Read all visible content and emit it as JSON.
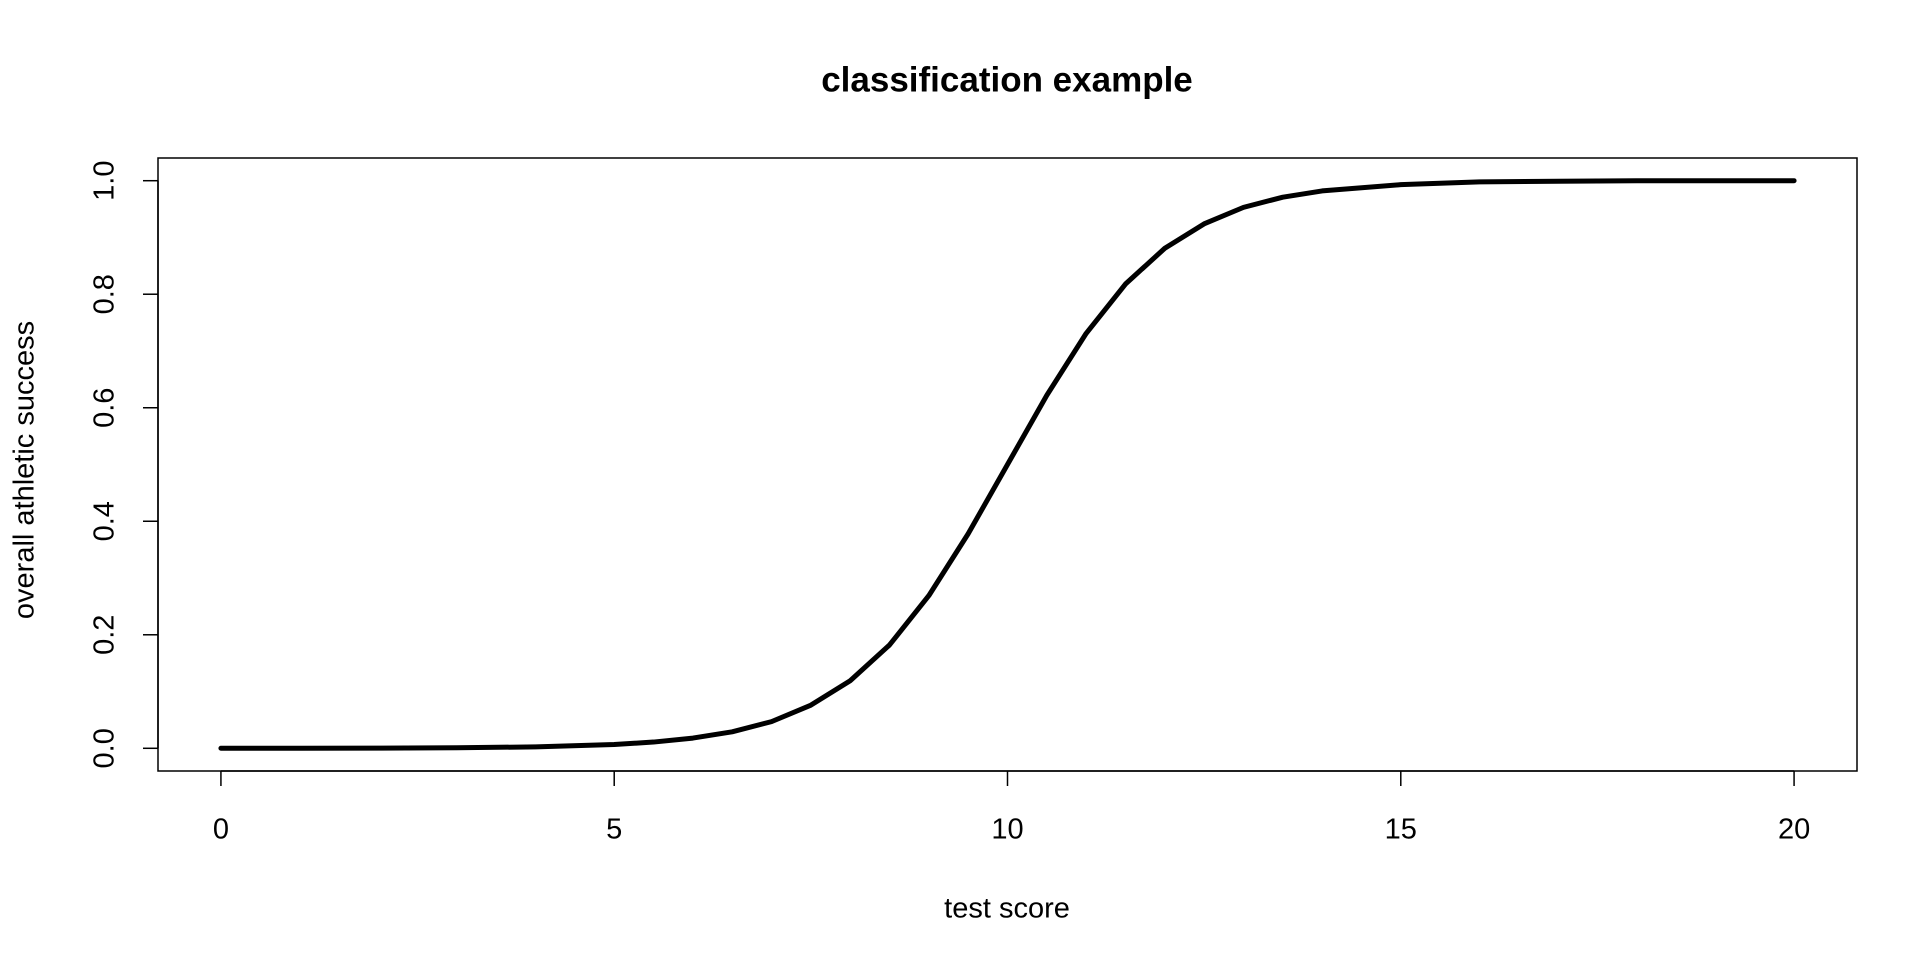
{
  "chart_data": {
    "type": "line",
    "title": "classification example",
    "x_label": "test score",
    "y_label": "overall athletic success",
    "x": [
      0,
      1,
      2,
      3,
      4,
      5,
      5.5,
      6,
      6.5,
      7,
      7.5,
      8,
      8.5,
      9,
      9.5,
      10,
      10.5,
      11,
      11.5,
      12,
      12.5,
      13,
      13.5,
      14,
      15,
      16,
      17,
      18,
      19,
      20
    ],
    "series": [
      {
        "color": "#000000",
        "values": [
          4.54e-05,
          0.0001,
          0.0003,
          0.0009,
          0.0025,
          0.0067,
          0.011,
          0.018,
          0.029,
          0.047,
          0.076,
          0.119,
          0.182,
          0.269,
          0.378,
          0.5,
          0.622,
          0.731,
          0.818,
          0.881,
          0.924,
          0.953,
          0.971,
          0.982,
          0.993,
          0.998,
          0.999,
          1.0,
          1.0,
          1.0
        ]
      }
    ],
    "xlim": [
      -0.8,
      20.8
    ],
    "ylim": [
      -0.04,
      1.04
    ],
    "xticks": [
      0,
      5,
      10,
      15,
      20
    ],
    "yticks": [
      {
        "value": 0,
        "label": "0.0"
      },
      {
        "value": 0.2,
        "label": "0.2"
      },
      {
        "value": 0.4,
        "label": "0.4"
      },
      {
        "value": 0.6,
        "label": "0.6"
      },
      {
        "value": 0.8,
        "label": "0.8"
      },
      {
        "value": 1,
        "label": "1.0"
      }
    ],
    "grid": false
  }
}
